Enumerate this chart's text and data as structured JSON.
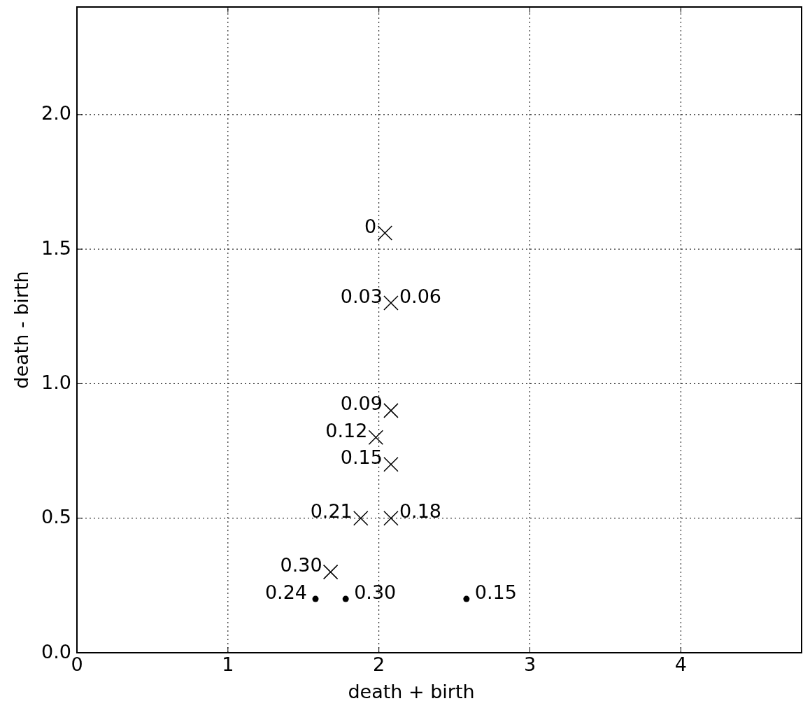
{
  "chart_data": {
    "type": "scatter",
    "xlabel": "death + birth",
    "ylabel": "death - birth",
    "xlim": [
      0,
      4.8
    ],
    "xticks": [
      0,
      1,
      2,
      3,
      4
    ],
    "ylim": [
      0,
      2.4
    ],
    "yticks": [
      {
        "value": 0,
        "label": "0.0"
      },
      {
        "value": 0.5,
        "label": "0.5"
      },
      {
        "value": 1,
        "label": "1.0"
      },
      {
        "value": 1.5,
        "label": "1.5"
      },
      {
        "value": 2,
        "label": "2.0"
      }
    ],
    "grid": true,
    "series": [
      {
        "color": "#000000",
        "marker": "cross",
        "x": [
          2.04,
          2.08,
          2.08,
          1.98,
          2.08,
          1.88,
          2.08,
          1.68
        ],
        "values": [
          1.56,
          1.3,
          0.9,
          0.8,
          0.7,
          0.5,
          0.5,
          0.3
        ]
      },
      {
        "color": "#000000",
        "marker": "circle",
        "x": [
          1.58,
          1.78,
          2.58
        ],
        "values": [
          0.2,
          0.2,
          0.2
        ]
      }
    ],
    "annotations": [
      {
        "text": "0",
        "x": 2.04,
        "y": 1.56
      },
      {
        "text": "0.03",
        "x": 2.08,
        "y": 1.3
      },
      {
        "text": "0.06",
        "x": 2.08,
        "y": 1.3
      },
      {
        "text": "0.09",
        "x": 2.08,
        "y": 0.9
      },
      {
        "text": "0.12",
        "x": 1.98,
        "y": 0.8
      },
      {
        "text": "0.15",
        "x": 2.08,
        "y": 0.7
      },
      {
        "text": "0.21",
        "x": 1.88,
        "y": 0.5
      },
      {
        "text": "0.18",
        "x": 2.08,
        "y": 0.5
      },
      {
        "text": "0.30",
        "x": 1.68,
        "y": 0.3
      },
      {
        "text": "0.24",
        "x": 1.58,
        "y": 0.2
      },
      {
        "text": "0.30",
        "x": 1.78,
        "y": 0.2
      },
      {
        "text": "0.15",
        "x": 2.58,
        "y": 0.2
      }
    ]
  }
}
